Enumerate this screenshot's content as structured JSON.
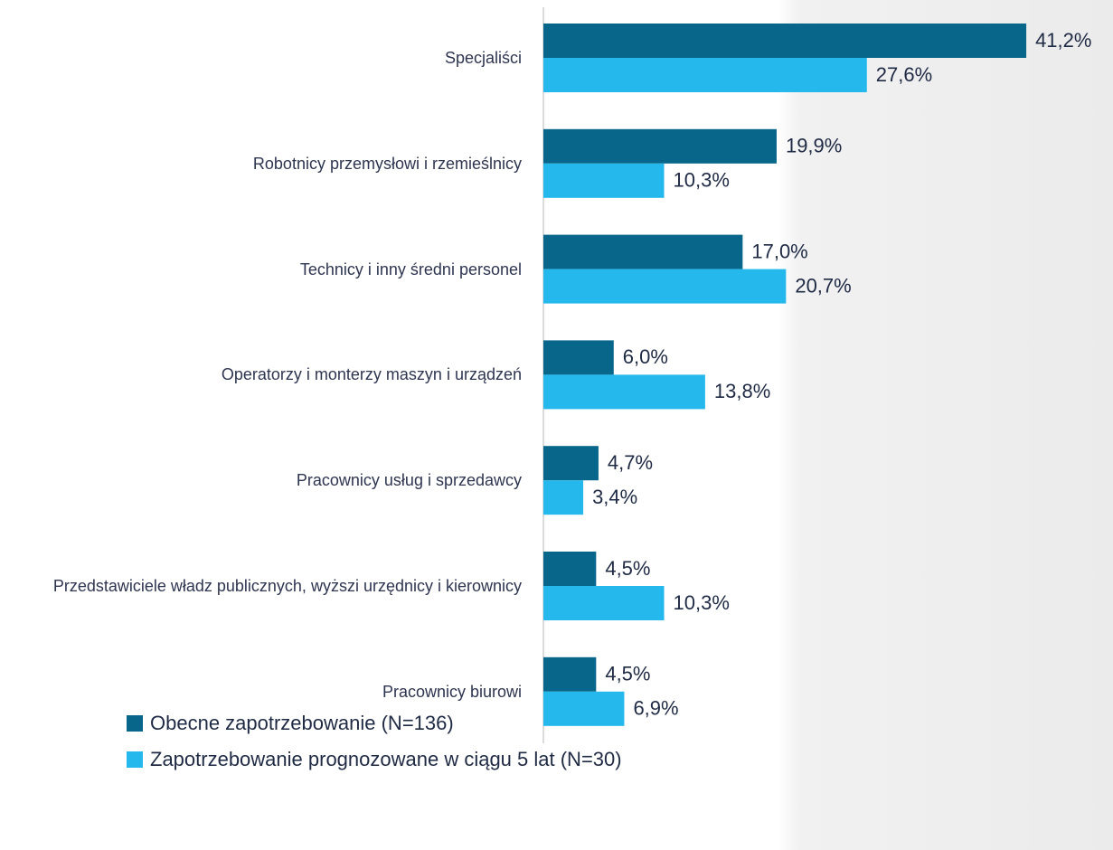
{
  "chart_data": {
    "type": "barh",
    "categories": [
      "Specjaliści",
      "Robotnicy przemysłowi i rzemieślnicy",
      "Technicy i inny średni personel",
      "Operatorzy i monterzy maszyn i urządzeń",
      "Pracownicy usług i sprzedawcy",
      "Przedstawiciele władz publicznych, wyższi urzędnicy i kierownicy",
      "Pracownicy biurowi"
    ],
    "series": [
      {
        "name": "Obecne zapotrzebowanie (N=136)",
        "color": "#08668a",
        "values": [
          41.2,
          19.9,
          17.0,
          6.0,
          4.7,
          4.5,
          4.5
        ],
        "value_labels": [
          "41,2%",
          "19,9%",
          "17,0%",
          "6,0%",
          "4,7%",
          "4,5%",
          "4,5%"
        ]
      },
      {
        "name": "Zapotrzebowanie prognozowane w ciągu 5 lat (N=30)",
        "color": "#24b8ec",
        "values": [
          27.6,
          10.3,
          20.7,
          13.8,
          3.4,
          10.3,
          6.9
        ],
        "value_labels": [
          "27,6%",
          "10,3%",
          "20,7%",
          "13,8%",
          "3,4%",
          "10,3%",
          "6,9%"
        ]
      }
    ],
    "xlim": [
      0,
      48.6
    ]
  }
}
